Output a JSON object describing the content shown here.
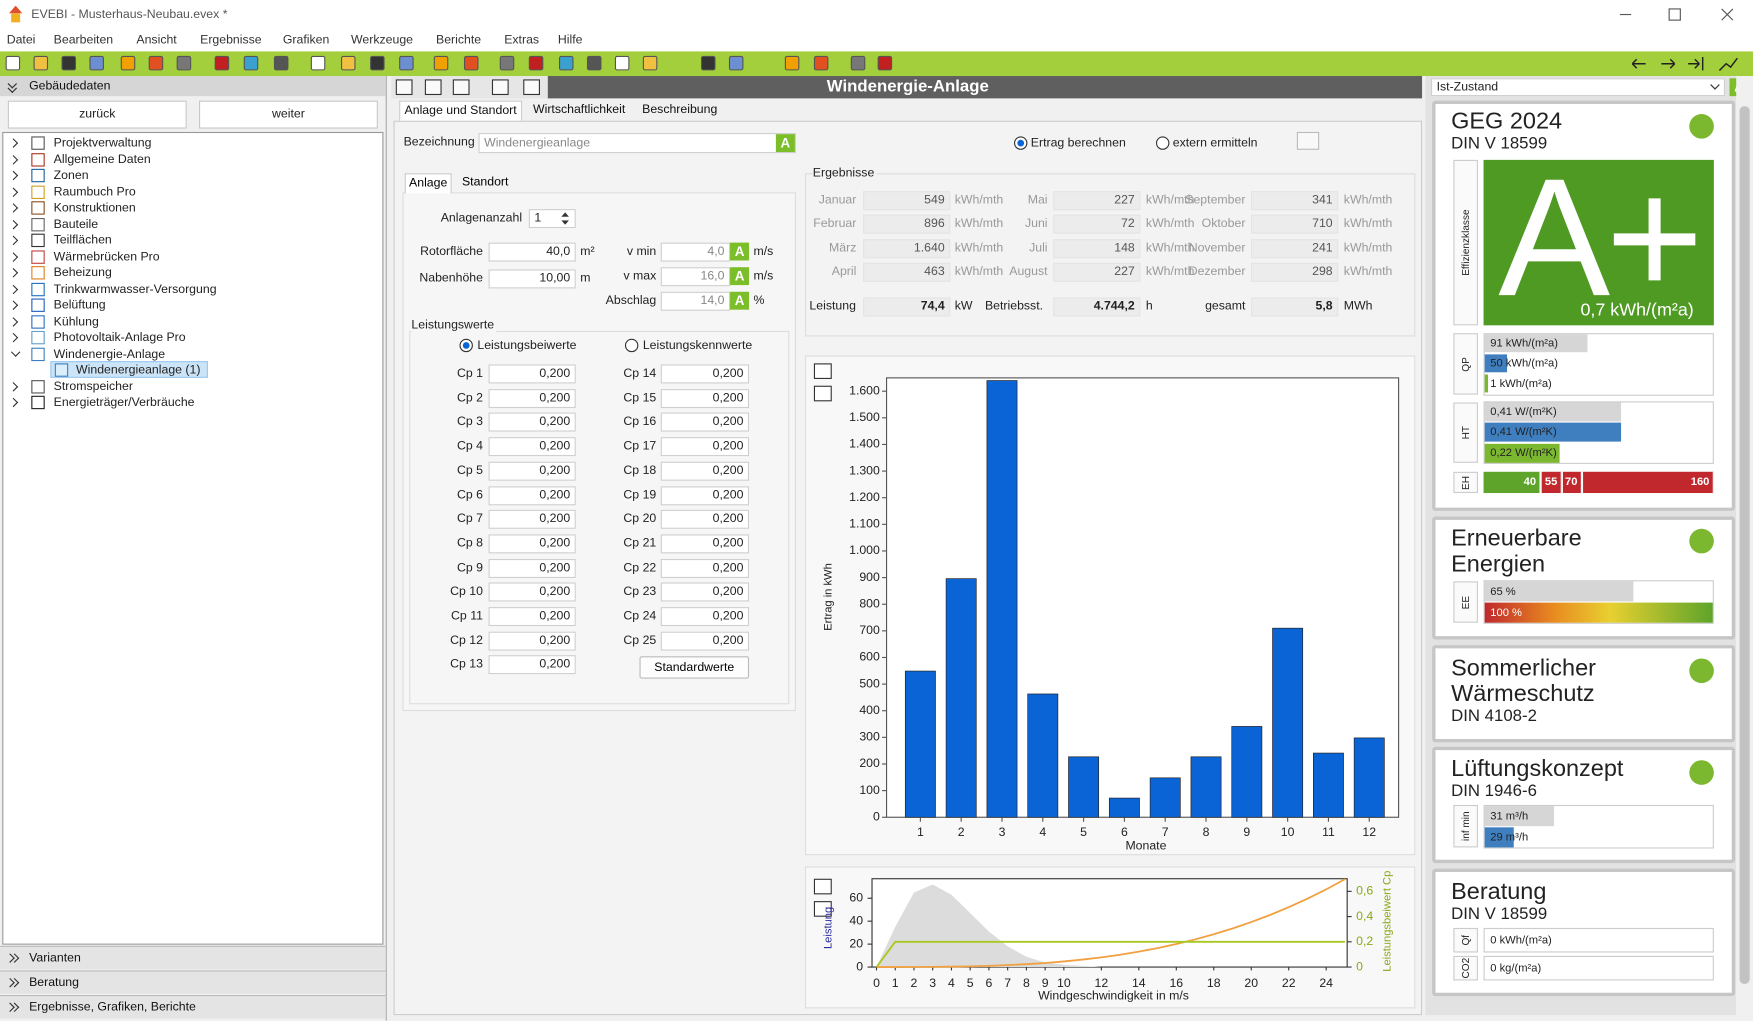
{
  "window": {
    "title": "EVEBI - Musterhaus-Neubau.evex *"
  },
  "menu": [
    "Datei",
    "Bearbeiten",
    "Ansicht",
    "Ergebnisse",
    "Grafiken",
    "Werkzeuge",
    "Berichte",
    "Extras",
    "Hilfe"
  ],
  "badge": "A",
  "sidebar": {
    "header": "Gebäudedaten",
    "buttons": [
      "zurück",
      "weiter"
    ],
    "tree": [
      {
        "label": "Projektverwaltung"
      },
      {
        "label": "Allgemeine Daten"
      },
      {
        "label": "Zonen"
      },
      {
        "label": "Raumbuch Pro"
      },
      {
        "label": "Konstruktionen"
      },
      {
        "label": "Bauteile"
      },
      {
        "label": "Teilflächen"
      },
      {
        "label": "Wärmebrücken Pro"
      },
      {
        "label": "Beheizung"
      },
      {
        "label": "Trinkwarmwasser-Versorgung"
      },
      {
        "label": "Belüftung"
      },
      {
        "label": "Kühlung"
      },
      {
        "label": "Photovoltaik-Anlage Pro"
      },
      {
        "label": "Windenergie-Anlage",
        "children": [
          {
            "label": "Windenergieanlage (1)"
          }
        ]
      },
      {
        "label": "Stromspeicher"
      },
      {
        "label": "Energieträger/Verbräuche"
      }
    ],
    "sections": [
      "Varianten",
      "Beratung",
      "Ergebnisse, Grafiken, Berichte"
    ]
  },
  "editor": {
    "title": "Windenergie-Anlage",
    "tabs": [
      "Anlage und Standort",
      "Wirtschaftlichkeit",
      "Beschreibung"
    ],
    "name_label": "Bezeichnung",
    "name_value": "Windenergieanlage",
    "modes": [
      "Ertrag berechnen",
      "extern ermitteln"
    ],
    "subtabs": [
      "Anlage",
      "Standort"
    ],
    "count": {
      "label": "Anlagenanzahl",
      "value": "1"
    },
    "fields": [
      {
        "label": "Rotorfläche",
        "value": "40,0",
        "unit": "m²"
      },
      {
        "label": "Nabenhöhe",
        "value": "10,00",
        "unit": "m"
      },
      {
        "label": "v min",
        "value": "4,0",
        "unit": "m/s"
      },
      {
        "label": "v max",
        "value": "16,0",
        "unit": "m/s"
      },
      {
        "label": "Abschlag",
        "value": "14,0",
        "unit": "%"
      }
    ],
    "power": {
      "title": "Leistungswerte",
      "modes": [
        "Leistungsbeiwerte",
        "Leistungskennwerte"
      ],
      "cp": [
        {
          "label": "Cp 1",
          "value": "0,200"
        },
        {
          "label": "Cp 2",
          "value": "0,200"
        },
        {
          "label": "Cp 3",
          "value": "0,200"
        },
        {
          "label": "Cp 4",
          "value": "0,200"
        },
        {
          "label": "Cp 5",
          "value": "0,200"
        },
        {
          "label": "Cp 6",
          "value": "0,200"
        },
        {
          "label": "Cp 7",
          "value": "0,200"
        },
        {
          "label": "Cp 8",
          "value": "0,200"
        },
        {
          "label": "Cp 9",
          "value": "0,200"
        },
        {
          "label": "Cp 10",
          "value": "0,200"
        },
        {
          "label": "Cp 11",
          "value": "0,200"
        },
        {
          "label": "Cp 12",
          "value": "0,200"
        },
        {
          "label": "Cp 13",
          "value": "0,200"
        },
        {
          "label": "Cp 14",
          "value": "0,200"
        },
        {
          "label": "Cp 15",
          "value": "0,200"
        },
        {
          "label": "Cp 16",
          "value": "0,200"
        },
        {
          "label": "Cp 17",
          "value": "0,200"
        },
        {
          "label": "Cp 18",
          "value": "0,200"
        },
        {
          "label": "Cp 19",
          "value": "0,200"
        },
        {
          "label": "Cp 20",
          "value": "0,200"
        },
        {
          "label": "Cp 21",
          "value": "0,200"
        },
        {
          "label": "Cp 22",
          "value": "0,200"
        },
        {
          "label": "Cp 23",
          "value": "0,200"
        },
        {
          "label": "Cp 24",
          "value": "0,200"
        },
        {
          "label": "Cp 25",
          "value": "0,200"
        }
      ],
      "button": "Standardwerte"
    },
    "results": {
      "title": "Ergebnisse",
      "months": [
        {
          "label": "Januar",
          "value": "549",
          "unit": "kWh/mth"
        },
        {
          "label": "Februar",
          "value": "896",
          "unit": "kWh/mth"
        },
        {
          "label": "März",
          "value": "1.640",
          "unit": "kWh/mth"
        },
        {
          "label": "April",
          "value": "463",
          "unit": "kWh/mth"
        },
        {
          "label": "Mai",
          "value": "227",
          "unit": "kWh/mth"
        },
        {
          "label": "Juni",
          "value": "72",
          "unit": "kWh/mth"
        },
        {
          "label": "Juli",
          "value": "148",
          "unit": "kWh/mth"
        },
        {
          "label": "August",
          "value": "227",
          "unit": "kWh/mth"
        },
        {
          "label": "September",
          "value": "341",
          "unit": "kWh/mth"
        },
        {
          "label": "Oktober",
          "value": "710",
          "unit": "kWh/mth"
        },
        {
          "label": "November",
          "value": "241",
          "unit": "kWh/mth"
        },
        {
          "label": "Dezember",
          "value": "298",
          "unit": "kWh/mth"
        }
      ],
      "totals": [
        {
          "label": "Leistung",
          "value": "74,4",
          "unit": "kW"
        },
        {
          "label": "Betriebsst.",
          "value": "4.744,2",
          "unit": "h"
        },
        {
          "label": "gesamt",
          "value": "5,8",
          "unit": "MWh"
        }
      ]
    }
  },
  "status": {
    "scenario": "Ist-Zustand",
    "geg": {
      "title": [
        "GEG 2024"
      ],
      "norm": "DIN V 18599",
      "efficiency": {
        "label": "Effizienzklasse",
        "class": "A+",
        "value": "0,7 kWh/(m²a)"
      },
      "qp": {
        "label": "QP",
        "rows": [
          "91 kWh/(m²a)",
          "50 kWh/(m²a)",
          "1 kWh/(m²a)"
        ]
      },
      "ht": {
        "label": "HT",
        "rows": [
          "0,41 W/(m²K)",
          "0,41 W/(m²K)",
          "0,22 W/(m²K)"
        ]
      },
      "eh": {
        "label": "EH",
        "segments": [
          "40",
          "55",
          "70",
          "160"
        ]
      }
    },
    "renewable": {
      "title": [
        "Erneuerbare",
        "Energien"
      ],
      "ee": {
        "label": "EE",
        "rows": [
          "65 %",
          "100 %"
        ]
      }
    },
    "summer": {
      "title": [
        "Sommerlicher",
        "Wärmeschutz"
      ],
      "norm": "DIN 4108-2"
    },
    "ventilation": {
      "title": [
        "Lüftungskonzept"
      ],
      "norm": "DIN 1946-6",
      "inf": {
        "label": "inf min",
        "rows": [
          "31 m³/h",
          "29 m³/h"
        ]
      }
    },
    "advice": {
      "title": [
        "Beratung"
      ],
      "norm": "DIN V 18599",
      "rows": [
        {
          "label": "Qf",
          "value": "0 kWh/(m²a)"
        },
        {
          "label": "CO2",
          "value": "0 kg/(m²a)"
        }
      ]
    }
  },
  "chart_data": [
    {
      "type": "bar",
      "categories": [
        "1",
        "2",
        "3",
        "4",
        "5",
        "6",
        "7",
        "8",
        "9",
        "10",
        "11",
        "12"
      ],
      "values": [
        549,
        896,
        1640,
        463,
        227,
        72,
        148,
        227,
        341,
        710,
        241,
        298
      ],
      "color": "#0a64d6",
      "ylim": [
        0,
        1650
      ],
      "yticks": [
        0,
        100,
        200,
        300,
        400,
        500,
        600,
        700,
        800,
        900,
        {
          "value": 1000,
          "label": "1.000"
        },
        {
          "value": 1100,
          "label": "1.100"
        },
        {
          "value": 1200,
          "label": "1.200"
        },
        {
          "value": 1300,
          "label": "1.300"
        },
        {
          "value": 1400,
          "label": "1.400"
        },
        {
          "value": 1500,
          "label": "1.500"
        },
        {
          "value": 1600,
          "label": "1.600"
        }
      ],
      "ylabel": "Ertrag in kWh",
      "xlabel": "Monate"
    },
    {
      "type": "line",
      "x": [
        0,
        1,
        2,
        3,
        4,
        5,
        6,
        7,
        8,
        9,
        10,
        11,
        12,
        13,
        14,
        15,
        16,
        17,
        18,
        19,
        20,
        21,
        22,
        23,
        24,
        25
      ],
      "xlim": [
        0,
        25
      ],
      "xticks": [
        0,
        1,
        2,
        3,
        4,
        5,
        6,
        7,
        8,
        9,
        10,
        12,
        14,
        16,
        18,
        20,
        22,
        24
      ],
      "ylim": [
        0,
        77
      ],
      "yticks": [
        0,
        20,
        40,
        60
      ],
      "y2lim": [
        0,
        0.7
      ],
      "y2ticks": [
        0,
        {
          "value": 0.2,
          "label": "0,2"
        },
        {
          "value": 0.4,
          "label": "0,4"
        },
        {
          "value": 0.6,
          "label": "0,6"
        }
      ],
      "ylabel": "Leistung",
      "y2label": "Leistungsbeiwert Cp",
      "xlabel": "Windgeschwindigkeit in m/s",
      "series": [
        {
          "color": "#dcdcdc",
          "fill": true,
          "values": [
            0,
            35,
            65,
            72,
            63,
            47,
            31,
            18,
            9,
            4,
            2,
            1,
            0,
            0,
            0,
            0,
            0,
            0,
            0,
            0,
            0,
            0,
            0,
            0,
            0,
            0
          ]
        },
        {
          "color": "#f0a040",
          "values": [
            0,
            0,
            0.04,
            0.13,
            0.31,
            0.61,
            1.06,
            1.68,
            2.51,
            3.57,
            4.9,
            6.52,
            8.47,
            10.77,
            13.45,
            16.54,
            20.07,
            24.07,
            28.58,
            33.61,
            39.2,
            45.38,
            52.18,
            59.62,
            67.74,
            76.56
          ]
        },
        {
          "color": "#a8c820",
          "axis": "y2",
          "values": [
            0,
            0.2,
            0.2,
            0.2,
            0.2,
            0.2,
            0.2,
            0.2,
            0.2,
            0.2,
            0.2,
            0.2,
            0.2,
            0.2,
            0.2,
            0.2,
            0.2,
            0.2,
            0.2,
            0.2,
            0.2,
            0.2,
            0.2,
            0.2,
            0.2,
            0.2
          ]
        }
      ]
    }
  ]
}
